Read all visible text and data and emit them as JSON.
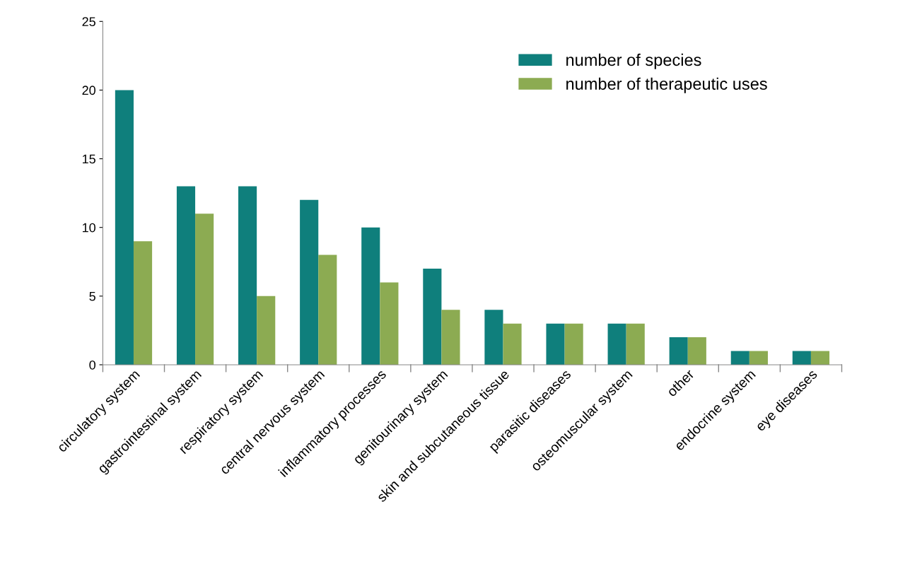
{
  "chart_data": {
    "type": "bar",
    "categories": [
      "circulatory system",
      "gastrointestinal system",
      "respiratory system",
      "central nervous system",
      "inflammatory processes",
      "genitourinary system",
      "skin and subcutaneous tissue",
      "parasitic diseases",
      "osteomuscular system",
      "other",
      "endocrine system",
      "eye diseases"
    ],
    "series": [
      {
        "name": "number of species",
        "color": "#0f7f7c",
        "values": [
          20,
          13,
          13,
          12,
          10,
          7,
          4,
          3,
          3,
          2,
          1,
          1
        ]
      },
      {
        "name": "number of therapeutic uses",
        "color": "#8cab52",
        "values": [
          9,
          11,
          5,
          8,
          6,
          4,
          3,
          3,
          3,
          2,
          1,
          1
        ]
      }
    ],
    "ylim": [
      0,
      25
    ],
    "yticks": [
      0,
      5,
      10,
      15,
      20,
      25
    ],
    "grid": false,
    "legend": "top right"
  }
}
